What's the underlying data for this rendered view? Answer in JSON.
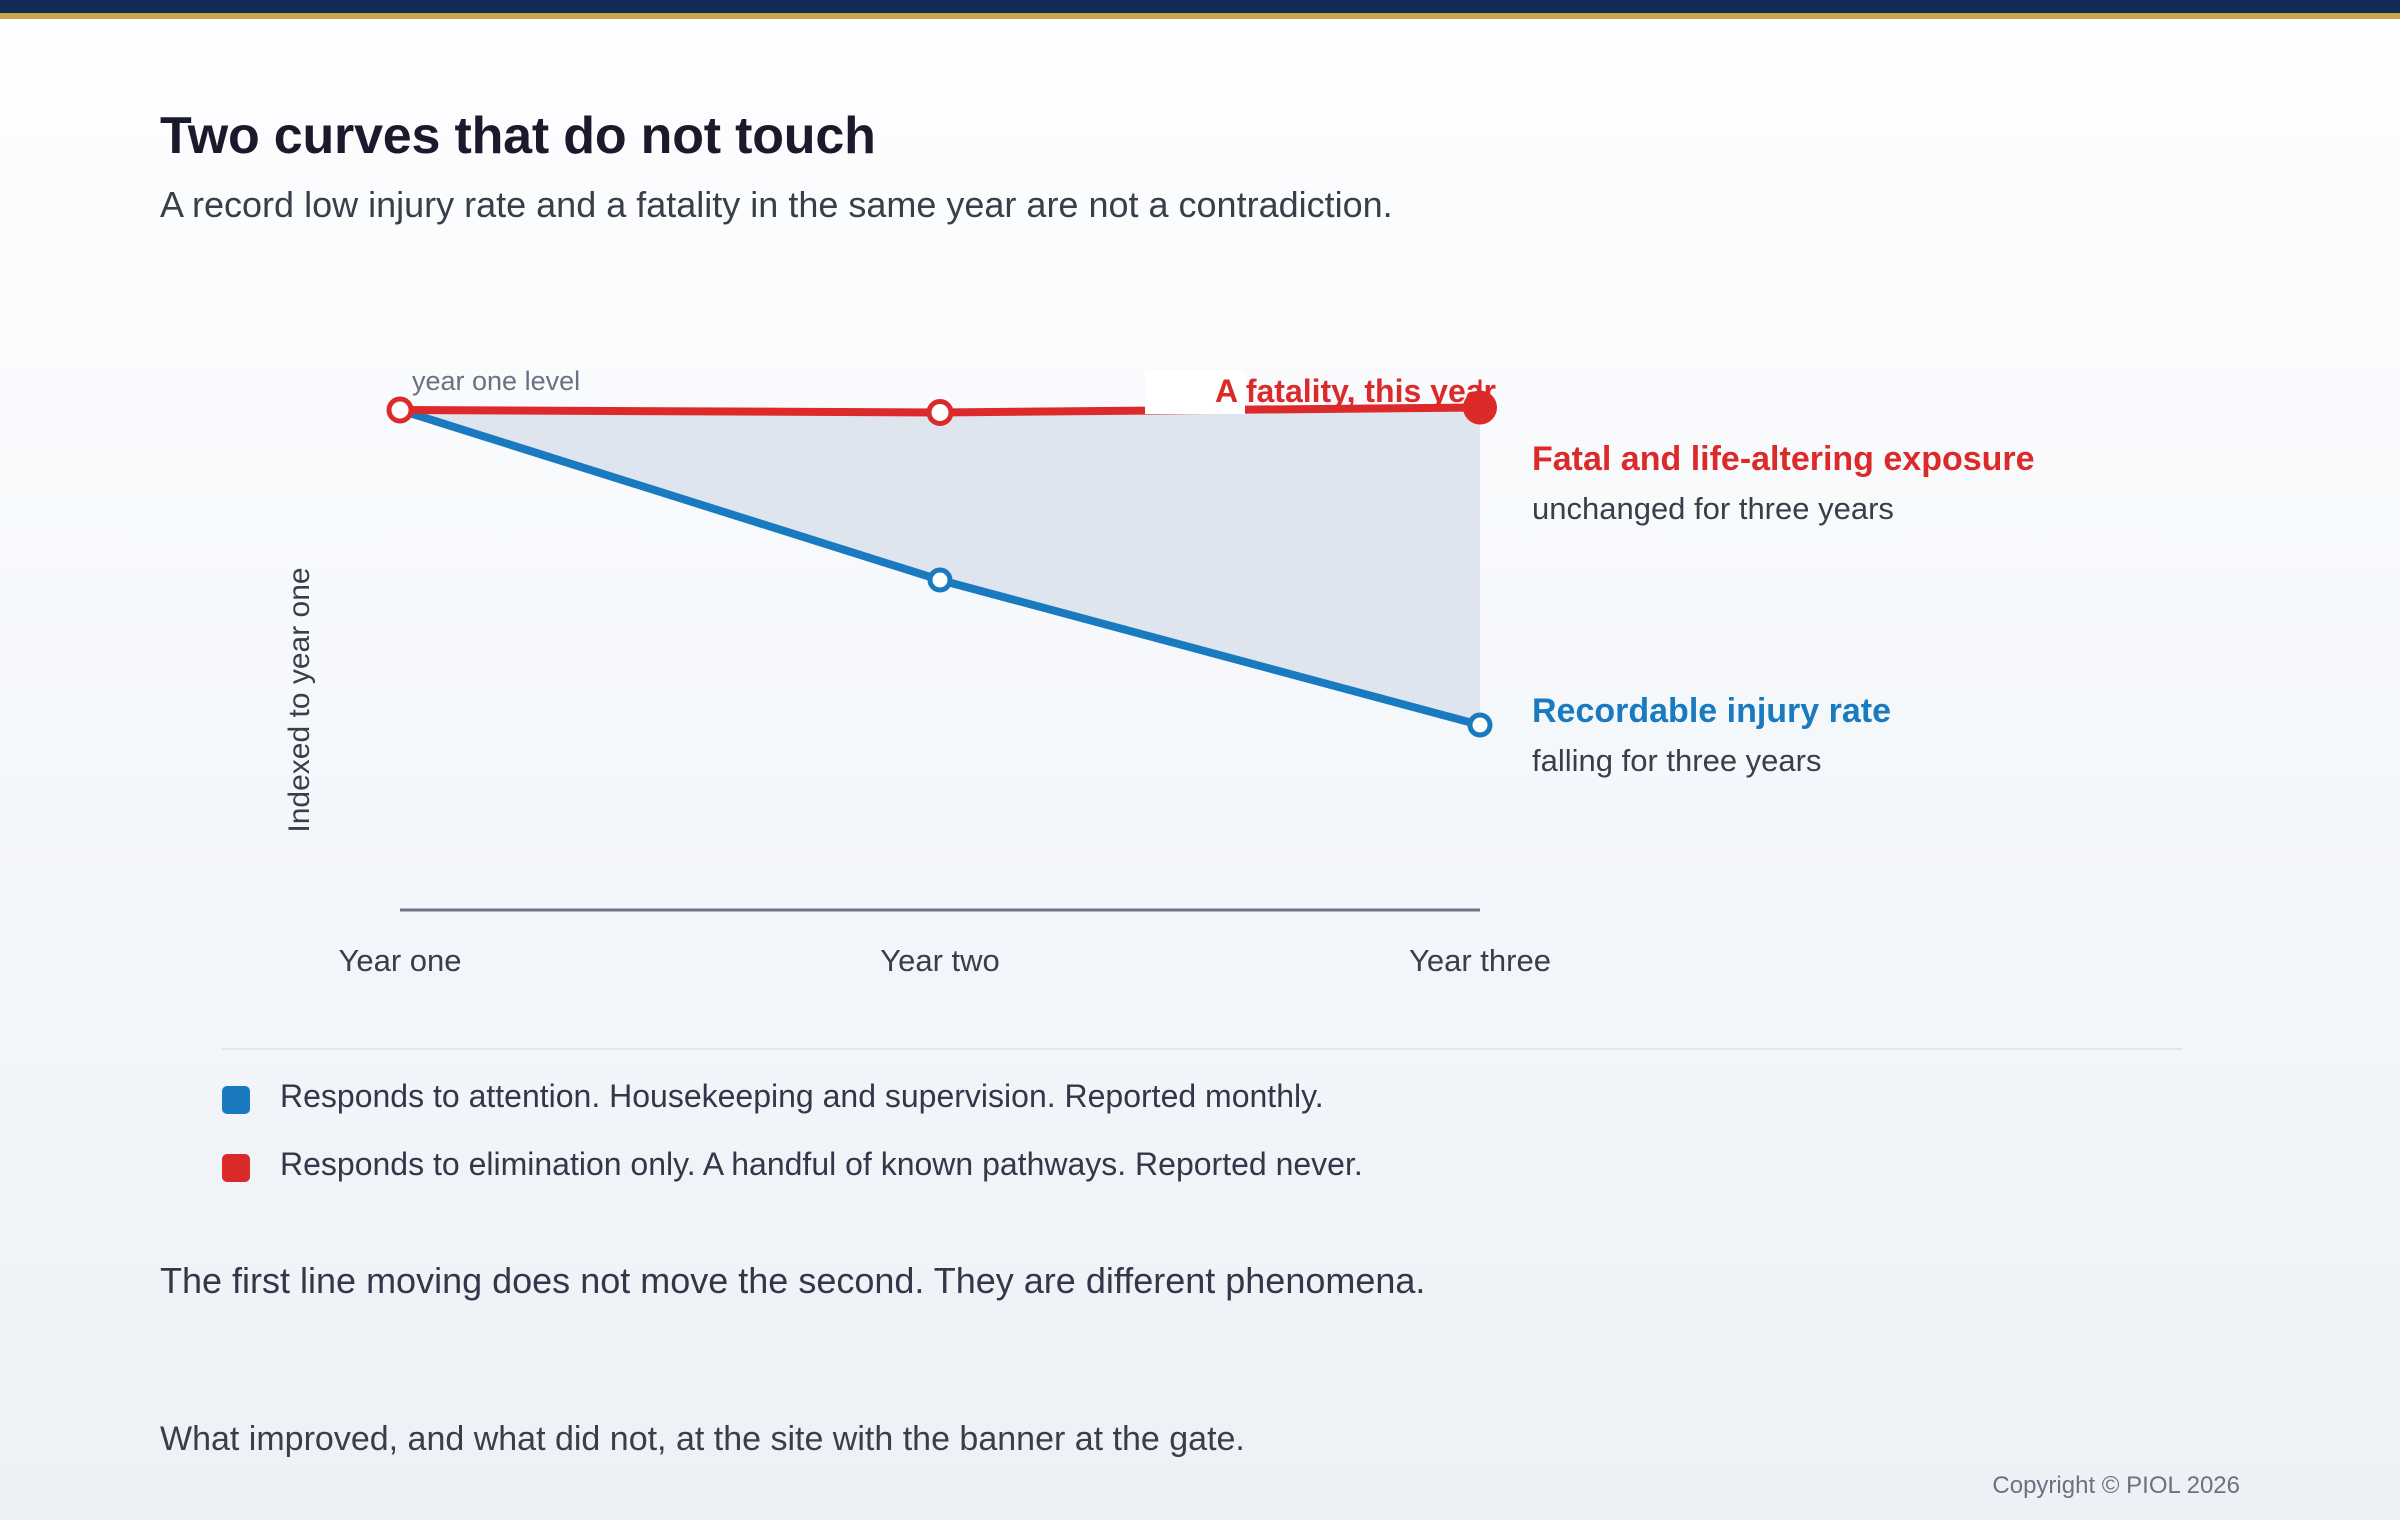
{
  "page": {
    "title": "Two curves that do not touch",
    "subtitle": "A record low injury rate and a fatality in the same year are not a contradiction.",
    "note": "The first line moving does not move the second. They are different phenomena.",
    "footer_note": "What improved, and what did not, at the site with the banner at the gate.",
    "copyright": "Copyright © PIOL 2026"
  },
  "legend": [
    {
      "color": "#1a7abf",
      "text": "Responds to attention. Housekeeping and supervision. Reported monthly."
    },
    {
      "color": "#dc2a2a",
      "text": "Responds to elimination only. A handful of known pathways. Reported never."
    }
  ],
  "chart_data": {
    "type": "line",
    "categories": [
      "Year one",
      "Year two",
      "Year three"
    ],
    "ylabel": "Indexed to year one",
    "ylim": [
      0,
      105
    ],
    "grid": false,
    "series": [
      {
        "name": "Fatal and life-altering exposure",
        "sublabel": "unchanged for three years",
        "color": "#dc2a2a",
        "values": [
          100,
          99.5,
          100.5
        ]
      },
      {
        "name": "Recordable injury rate",
        "sublabel": "falling for three years",
        "color": "#1a7abf",
        "values": [
          100,
          66,
          37
        ]
      }
    ],
    "annotations": {
      "start": "year one level",
      "event": "A fatality, this year"
    }
  }
}
